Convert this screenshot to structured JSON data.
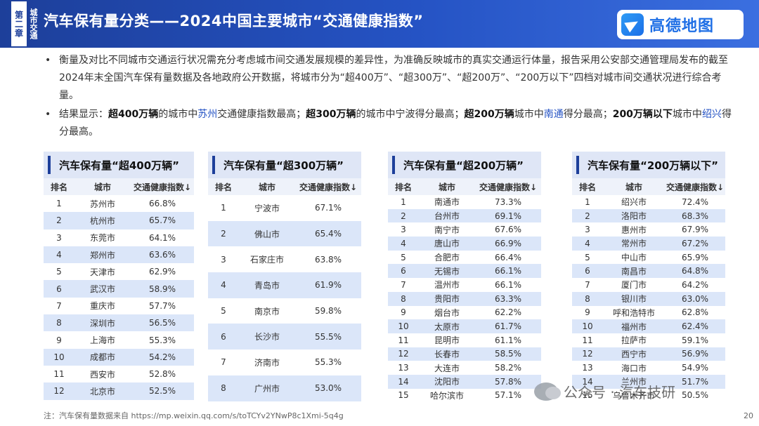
{
  "header": {
    "chapter": "第二章",
    "chapter_sub": "城市交通",
    "title": "汽车保有量分类——2024中国主要城市“交通健康指数”",
    "logo_text": "高德地图"
  },
  "bullets": [
    {
      "text": "衡量及对比不同城市交通运行状况需充分考虑城市间交通发展规模的差异性，为准确反映城市的真实交通运行体量，报告采用公安部交通管理局发布的截至2024年末全国汽车保有量数据及各地政府公开数据，将城市分为“超400万”、“超300万”、“超200万”、“200万以下”四档对城市间交通状况进行综合考量。"
    },
    {
      "p1": "结果显示：",
      "b1": "超400万辆",
      "p2": "的城市中",
      "c1": "苏州",
      "p3": "交通健康指数最高；",
      "b2": "超300万辆",
      "p4": "的城市中宁波得分最高；",
      "b3": "超200万辆",
      "p5": "城市中",
      "c2": "南通",
      "p6": "得分最高；",
      "b4": "200万辆以下",
      "p7": "城市中",
      "c3": "绍兴",
      "p8": "得分最高。"
    }
  ],
  "column_headers": {
    "rank": "排名",
    "city": "城市",
    "value": "交通健康指数↓"
  },
  "tables": [
    {
      "title": "汽车保有量“超400万辆”",
      "rows": [
        [
          "1",
          "苏州市",
          "66.8%"
        ],
        [
          "2",
          "杭州市",
          "65.7%"
        ],
        [
          "3",
          "东莞市",
          "64.1%"
        ],
        [
          "4",
          "郑州市",
          "63.6%"
        ],
        [
          "5",
          "天津市",
          "62.9%"
        ],
        [
          "6",
          "武汉市",
          "58.9%"
        ],
        [
          "7",
          "重庆市",
          "57.7%"
        ],
        [
          "8",
          "深圳市",
          "56.5%"
        ],
        [
          "9",
          "上海市",
          "55.3%"
        ],
        [
          "10",
          "成都市",
          "54.2%"
        ],
        [
          "11",
          "西安市",
          "52.8%"
        ],
        [
          "12",
          "北京市",
          "52.5%"
        ]
      ]
    },
    {
      "title": "汽车保有量“超300万辆”",
      "rows": [
        [
          "1",
          "宁波市",
          "67.1%"
        ],
        [
          "2",
          "佛山市",
          "65.4%"
        ],
        [
          "3",
          "石家庄市",
          "63.8%"
        ],
        [
          "4",
          "青岛市",
          "61.9%"
        ],
        [
          "5",
          "南京市",
          "59.8%"
        ],
        [
          "6",
          "长沙市",
          "55.5%"
        ],
        [
          "7",
          "济南市",
          "55.3%"
        ],
        [
          "8",
          "广州市",
          "53.0%"
        ]
      ]
    },
    {
      "title": "汽车保有量“超200万辆”",
      "rows": [
        [
          "1",
          "南通市",
          "73.3%"
        ],
        [
          "2",
          "台州市",
          "69.1%"
        ],
        [
          "3",
          "南宁市",
          "67.6%"
        ],
        [
          "4",
          "唐山市",
          "66.9%"
        ],
        [
          "5",
          "合肥市",
          "66.4%"
        ],
        [
          "6",
          "无锡市",
          "66.1%"
        ],
        [
          "7",
          "温州市",
          "66.1%"
        ],
        [
          "8",
          "贵阳市",
          "63.3%"
        ],
        [
          "9",
          "烟台市",
          "62.2%"
        ],
        [
          "10",
          "太原市",
          "61.7%"
        ],
        [
          "11",
          "昆明市",
          "61.1%"
        ],
        [
          "12",
          "长春市",
          "58.5%"
        ],
        [
          "13",
          "大连市",
          "58.2%"
        ],
        [
          "14",
          "沈阳市",
          "57.8%"
        ],
        [
          "15",
          "哈尔滨市",
          "57.1%"
        ]
      ]
    },
    {
      "title": "汽车保有量“200万辆以下”",
      "rows": [
        [
          "1",
          "绍兴市",
          "72.4%"
        ],
        [
          "2",
          "洛阳市",
          "68.3%"
        ],
        [
          "3",
          "惠州市",
          "67.9%"
        ],
        [
          "4",
          "常州市",
          "67.2%"
        ],
        [
          "5",
          "中山市",
          "65.9%"
        ],
        [
          "6",
          "南昌市",
          "64.8%"
        ],
        [
          "7",
          "厦门市",
          "64.2%"
        ],
        [
          "8",
          "银川市",
          "63.0%"
        ],
        [
          "9",
          "呼和浩特市",
          "62.8%"
        ],
        [
          "10",
          "福州市",
          "62.4%"
        ],
        [
          "11",
          "拉萨市",
          "59.1%"
        ],
        [
          "12",
          "西宁市",
          "56.9%"
        ],
        [
          "13",
          "海口市",
          "54.9%"
        ],
        [
          "14",
          "兰州市",
          "51.7%"
        ],
        [
          "15",
          "乌鲁木齐市",
          "50.5%"
        ]
      ]
    }
  ],
  "footnote": "注：汽车保有量数据来自 https://mp.weixin.qq.com/s/toTCYv2YNwP8c1Xmi-5q4g",
  "watermark": "公众号 · 汽车技研",
  "page_number": "20"
}
